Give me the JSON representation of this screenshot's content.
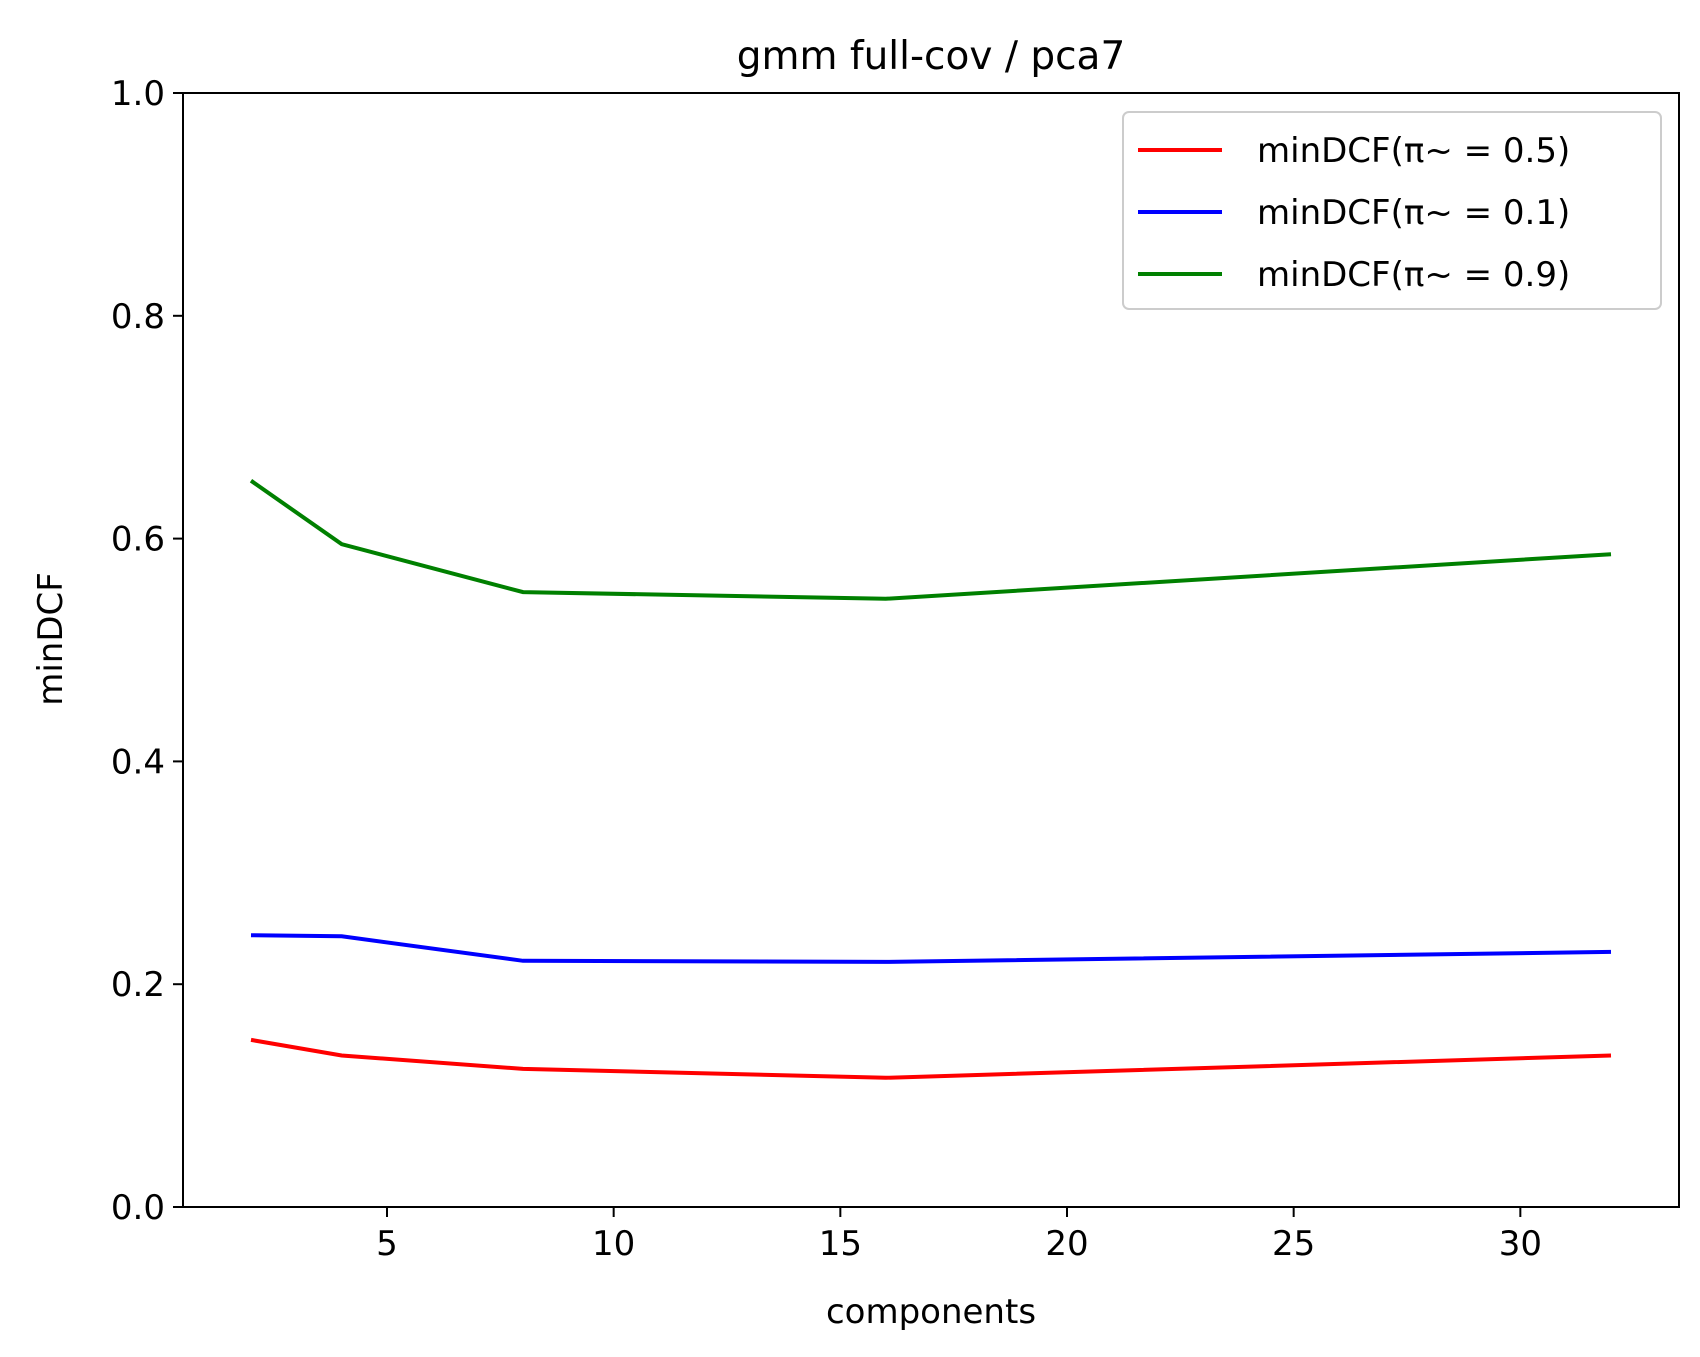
{
  "chart_data": {
    "type": "line",
    "title": "gmm full-cov / pca7",
    "xlabel": "components",
    "ylabel": "minDCF",
    "x": [
      2,
      4,
      8,
      16,
      32
    ],
    "xlim": [
      0.5,
      33.5
    ],
    "ylim": [
      0.0,
      1.0
    ],
    "xticks": [
      5,
      10,
      15,
      20,
      25,
      30
    ],
    "xtick_labels": [
      "5",
      "10",
      "15",
      "20",
      "25",
      "30"
    ],
    "yticks": [
      0.0,
      0.2,
      0.4,
      0.6,
      0.8,
      1.0
    ],
    "ytick_labels": [
      "0.0",
      "0.2",
      "0.4",
      "0.6",
      "0.8",
      "1.0"
    ],
    "grid": false,
    "legend_position": "top-right",
    "series": [
      {
        "name": "minDCF(π~ = 0.5)",
        "color": "#ff0000",
        "values": [
          0.15,
          0.136,
          0.124,
          0.116,
          0.136
        ]
      },
      {
        "name": "minDCF(π~ = 0.1)",
        "color": "#0000ff",
        "values": [
          0.244,
          0.243,
          0.221,
          0.22,
          0.229
        ]
      },
      {
        "name": "minDCF(π~ = 0.9)",
        "color": "#008000",
        "values": [
          0.652,
          0.595,
          0.552,
          0.546,
          0.586
        ]
      }
    ]
  }
}
